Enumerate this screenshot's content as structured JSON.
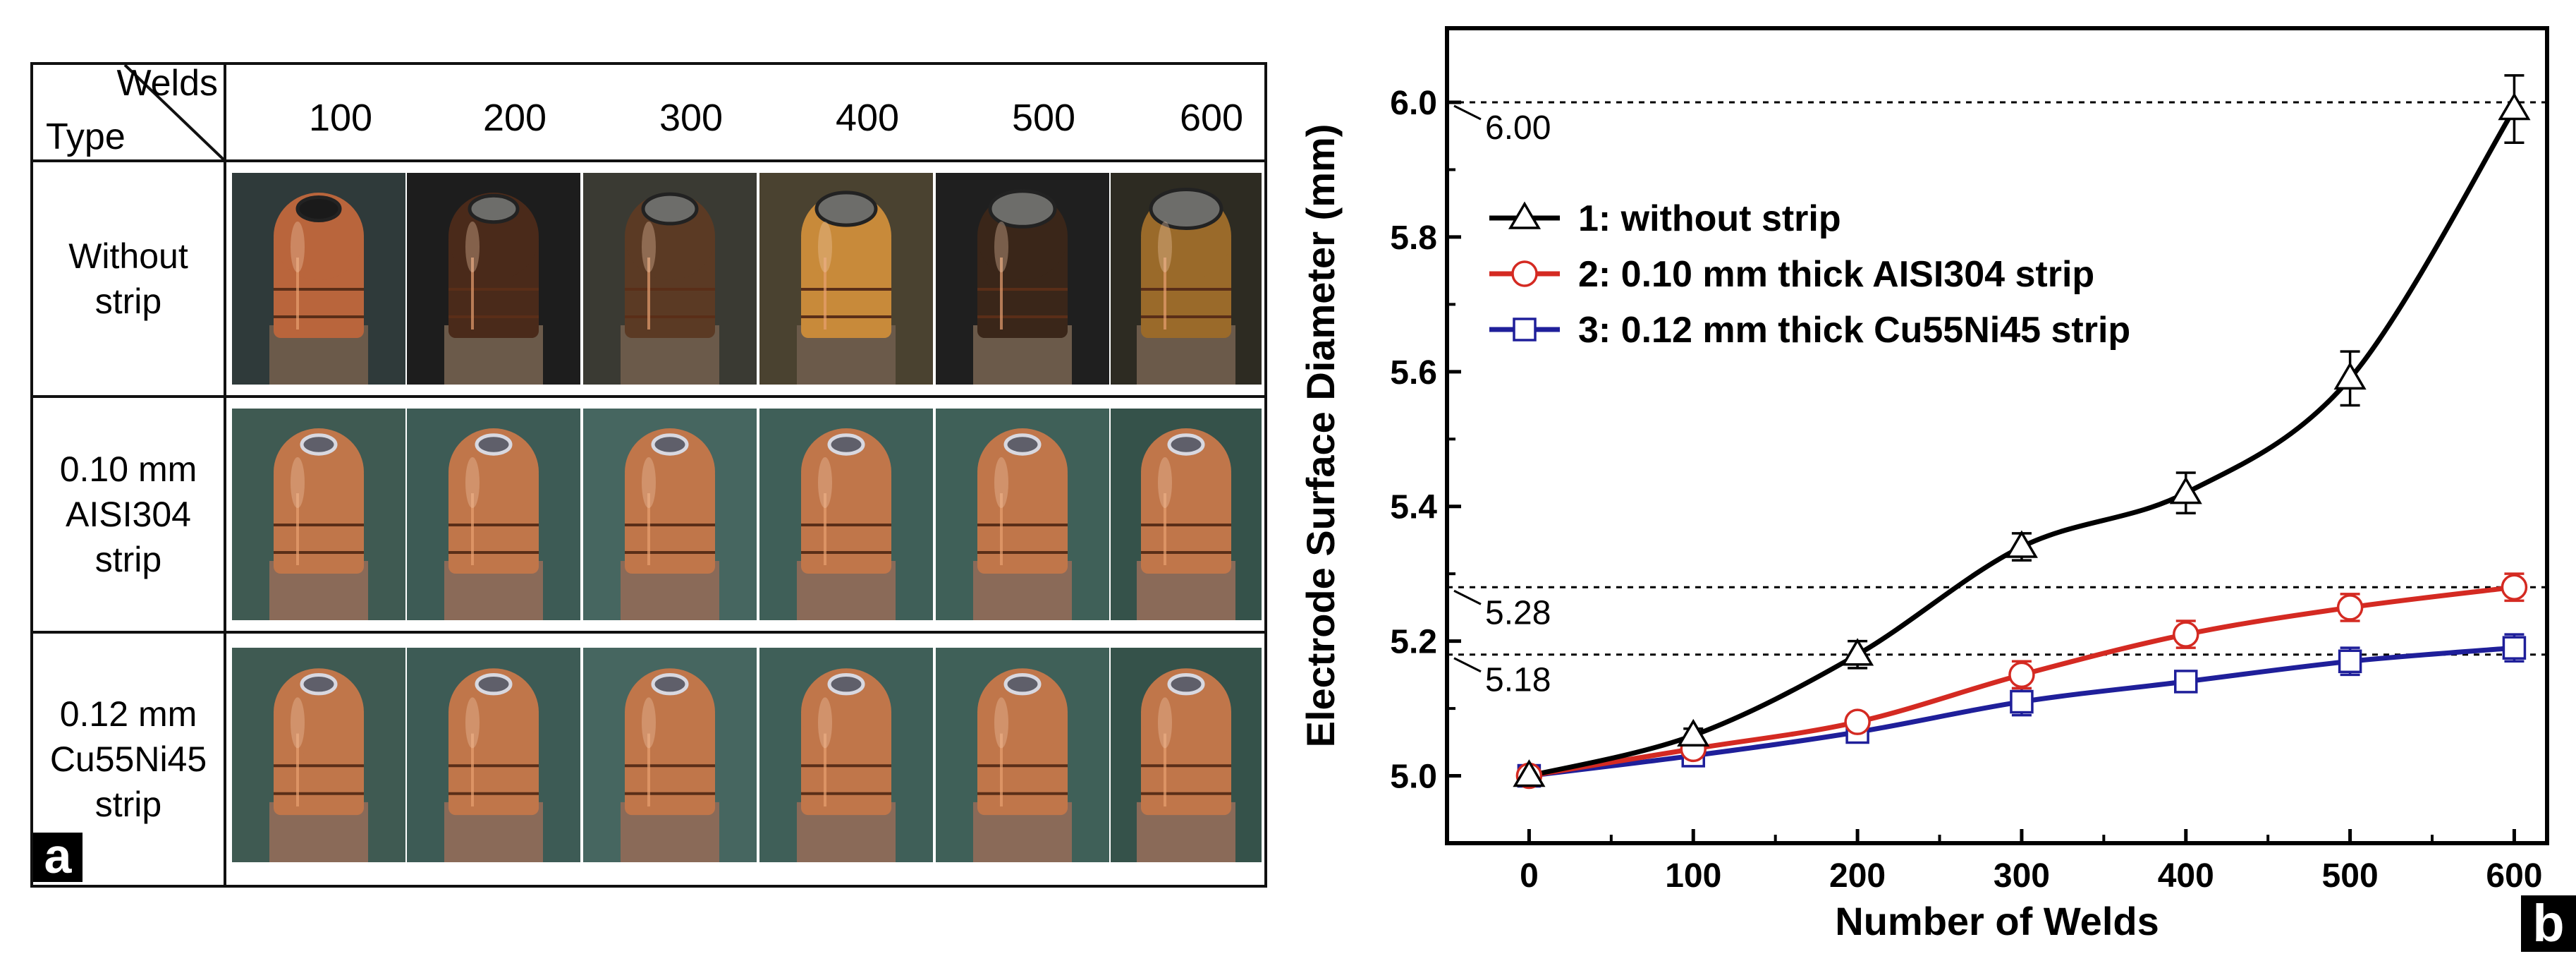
{
  "panel_a": {
    "badge": "a",
    "corner": {
      "top_label": "Welds",
      "bottom_label": "Type"
    },
    "weld_counts": [
      "100",
      "200",
      "300",
      "400",
      "500",
      "600"
    ],
    "rows": [
      {
        "label_lines": [
          "Without",
          "strip"
        ],
        "tone": "worn"
      },
      {
        "label_lines": [
          "0.10 mm",
          "AISI304",
          "strip"
        ],
        "tone": "clean"
      },
      {
        "label_lines": [
          "0.12 mm",
          "Cu55Ni45",
          "strip"
        ],
        "tone": "clean"
      }
    ]
  },
  "panel_b": {
    "badge": "b"
  },
  "chart_data": {
    "type": "line",
    "title": "",
    "xlabel": "Number of Welds",
    "ylabel": "Electrode Surface Diameter (mm)",
    "x": [
      0,
      100,
      200,
      300,
      400,
      500,
      600
    ],
    "xlim": [
      -50,
      620
    ],
    "ylim": [
      4.9,
      6.11
    ],
    "xticks": [
      "0",
      "100",
      "200",
      "300",
      "400",
      "500",
      "600"
    ],
    "yticks": [
      "5.0",
      "5.2",
      "5.4",
      "5.6",
      "5.8",
      "6.0"
    ],
    "ytick_values": [
      5.0,
      5.2,
      5.4,
      5.6,
      5.8,
      6.0
    ],
    "series": [
      {
        "name": "1: without strip",
        "color": "#000000",
        "marker": "triangle",
        "values": [
          5.0,
          5.06,
          5.18,
          5.34,
          5.42,
          5.59,
          5.99
        ],
        "errors": [
          0.0,
          0.01,
          0.02,
          0.02,
          0.03,
          0.04,
          0.05
        ]
      },
      {
        "name": "2: 0.10 mm thick AISI304 strip",
        "color": "#d42a22",
        "marker": "circle",
        "values": [
          5.0,
          5.04,
          5.08,
          5.15,
          5.21,
          5.25,
          5.28
        ],
        "errors": [
          0.0,
          0.01,
          0.01,
          0.02,
          0.02,
          0.02,
          0.02
        ]
      },
      {
        "name": "3: 0.12 mm thick Cu55Ni45 strip",
        "color": "#1f1f9a",
        "marker": "square",
        "values": [
          5.0,
          5.03,
          5.065,
          5.11,
          5.14,
          5.17,
          5.19
        ],
        "errors": [
          0.0,
          0.01,
          0.01,
          0.02,
          0.01,
          0.02,
          0.02
        ]
      }
    ],
    "reference_lines": [
      {
        "value": 6.0,
        "label": "6.00"
      },
      {
        "value": 5.28,
        "label": "5.28"
      },
      {
        "value": 5.18,
        "label": "5.18"
      }
    ],
    "legend_position": "upper-left"
  }
}
